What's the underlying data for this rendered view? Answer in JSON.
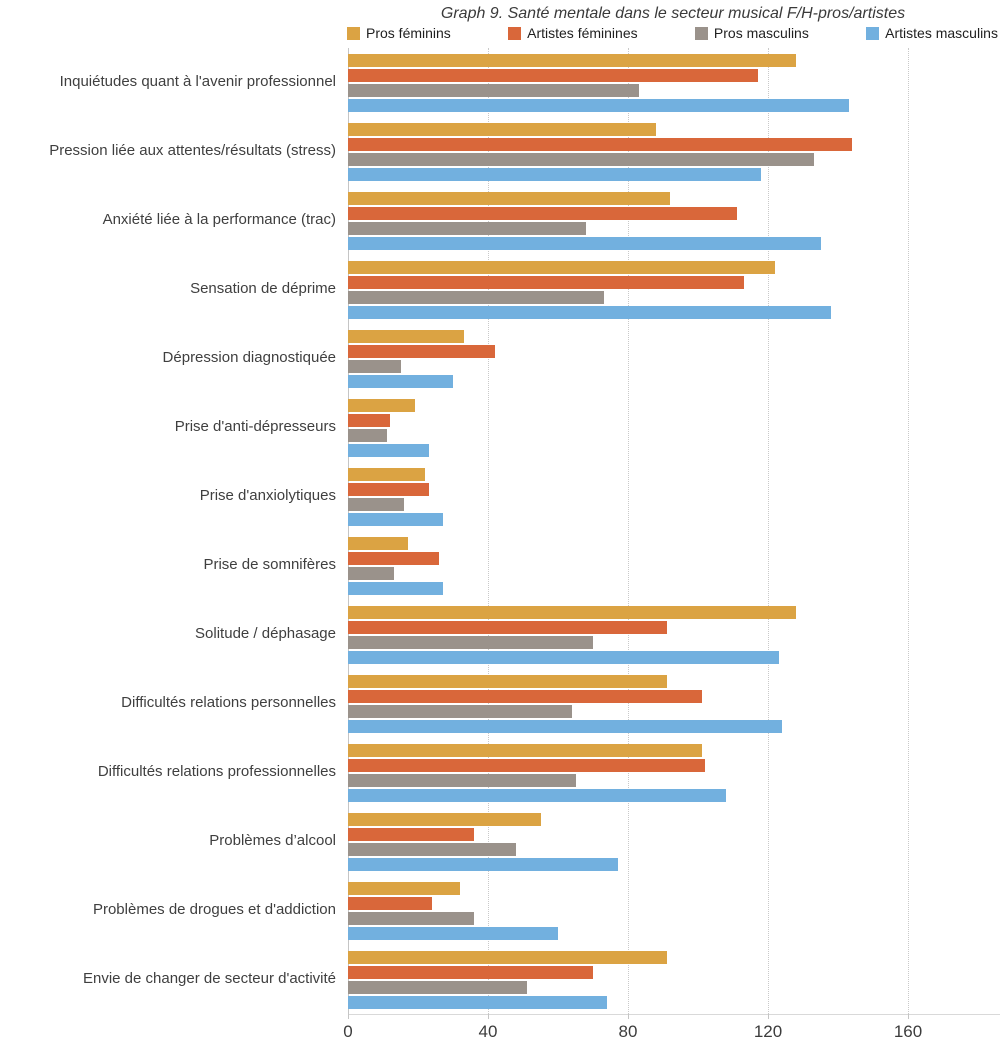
{
  "chart_data": {
    "type": "bar",
    "orientation": "horizontal",
    "title": "Graph 9. Santé mentale dans le secteur musical F/H-pros/artistes",
    "xlabel": "",
    "ylabel": "",
    "x_ticks": [
      0,
      40,
      80,
      120,
      160
    ],
    "xlim": [
      0,
      186
    ],
    "grid": "vertical-dotted",
    "legend_position": "top",
    "categories": [
      "Inquiétudes quant à l'avenir professionnel",
      "Pression liée aux attentes/résultats (stress)",
      "Anxiété liée à la performance (trac)",
      "Sensation de déprime",
      "Dépression diagnostiquée",
      "Prise d'anti-dépresseurs",
      "Prise d'anxiolytiques",
      "Prise de somnifères",
      "Solitude / déphasage",
      "Difficultés relations personnelles",
      "Difficultés relations professionnelles",
      "Problèmes d’alcool",
      "Problèmes de drogues et d'addiction",
      "Envie de changer de secteur d'activité"
    ],
    "series": [
      {
        "name": "Pros féminins",
        "color": "#DBA343",
        "values": [
          128,
          88,
          92,
          122,
          33,
          19,
          22,
          17,
          128,
          91,
          101,
          55,
          32,
          91
        ]
      },
      {
        "name": "Artistes féminines",
        "color": "#D9673A",
        "values": [
          117,
          144,
          111,
          113,
          42,
          12,
          23,
          26,
          91,
          101,
          102,
          36,
          24,
          70
        ]
      },
      {
        "name": "Pros masculins",
        "color": "#9A928B",
        "values": [
          83,
          133,
          68,
          73,
          15,
          11,
          16,
          13,
          70,
          64,
          65,
          48,
          36,
          51
        ]
      },
      {
        "name": "Artistes masculins",
        "color": "#72B0DF",
        "values": [
          143,
          118,
          135,
          138,
          30,
          23,
          27,
          27,
          123,
          124,
          108,
          77,
          60,
          74
        ]
      }
    ]
  }
}
